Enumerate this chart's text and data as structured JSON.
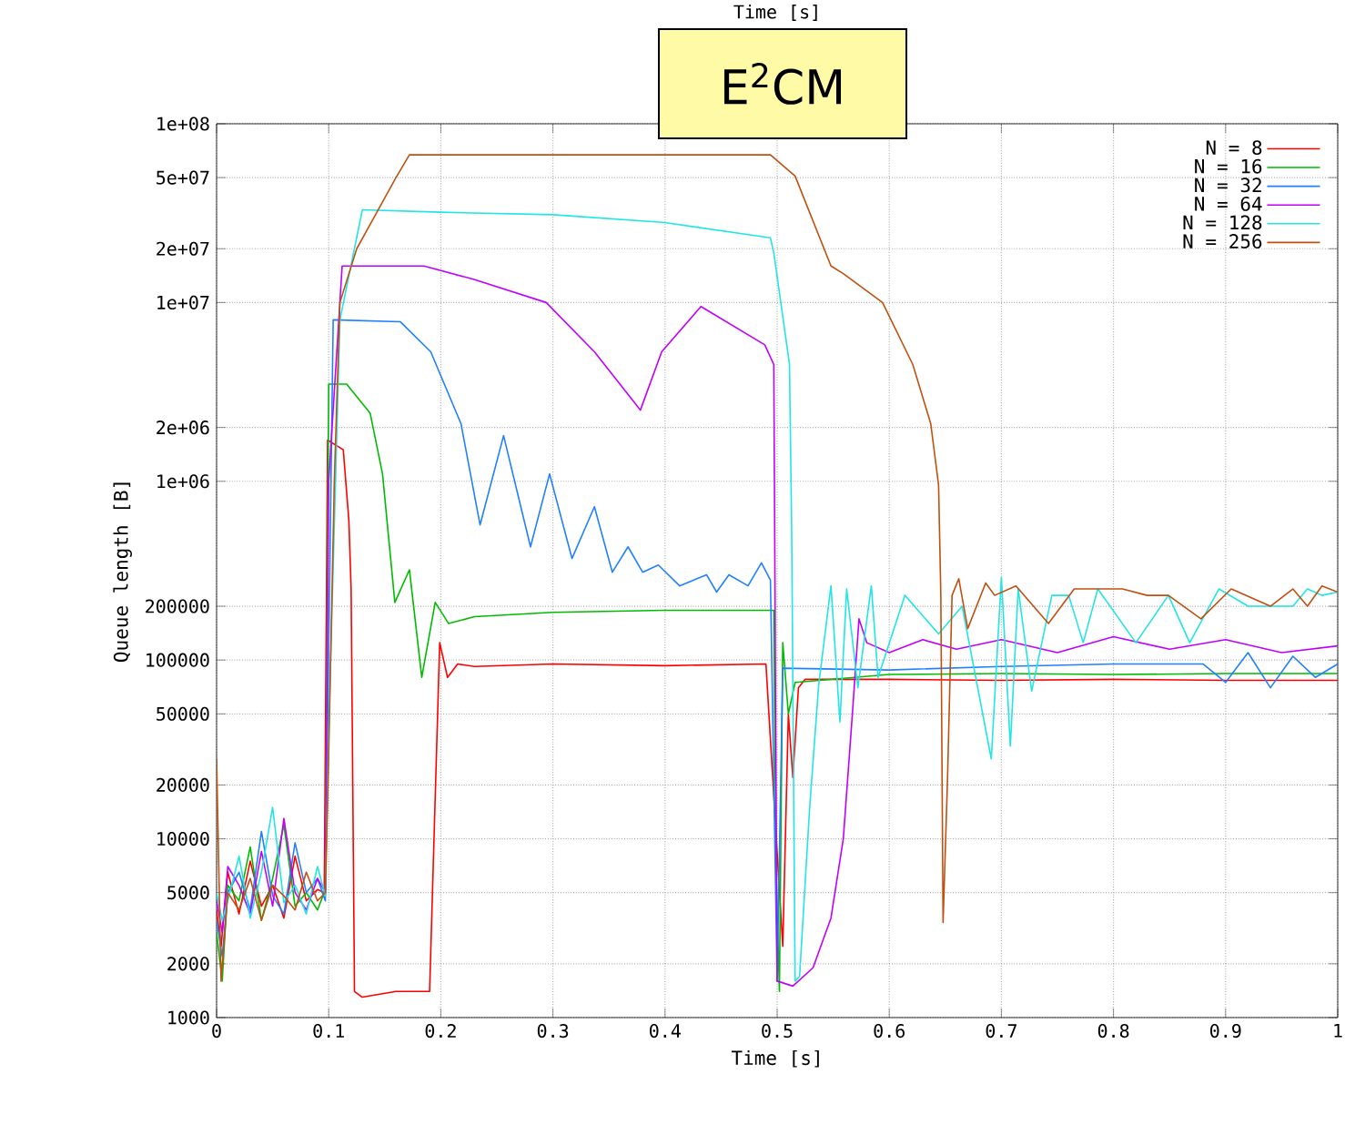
{
  "chart_data": {
    "type": "line",
    "title": "E$^{2}$CM",
    "xlabel": "Time [s]",
    "x2label": "Time [s]",
    "ylabel": "Queue length [B]",
    "log": "y",
    "grid": true,
    "legend": "top right",
    "marker": "none",
    "line_style": "solid",
    "xlim": [
      0,
      1
    ],
    "ylim": [
      1000,
      100000000
    ],
    "xticks": [
      0,
      0.1,
      0.2,
      0.3,
      0.4,
      0.5,
      0.6,
      0.7,
      0.8,
      0.9,
      1
    ],
    "yticks": [
      1000,
      2000,
      5000,
      10000,
      20000,
      50000,
      100000,
      200000,
      {
        "value": 1000000,
        "label": "1e+06"
      },
      {
        "value": 2000000,
        "label": "2e+06"
      },
      {
        "value": 10000000,
        "label": "1e+07"
      },
      {
        "value": 20000000,
        "label": "2e+07"
      },
      {
        "value": 50000000,
        "label": "5e+07"
      },
      {
        "value": 100000000,
        "label": "1e+08"
      }
    ],
    "series": [
      {
        "name": "N = 8",
        "color": "#ff0000",
        "x": [
          0,
          0.004,
          0.01,
          0.02,
          0.03,
          0.04,
          0.05,
          0.06,
          0.07,
          0.08,
          0.09,
          0.096,
          0.099,
          0.113,
          0.118,
          0.12,
          0.123,
          0.13,
          0.16,
          0.19,
          0.195,
          0.199,
          0.206,
          0.215,
          0.23,
          0.3,
          0.4,
          0.49,
          0.5,
          0.505,
          0.51,
          0.514,
          0.519,
          0.525,
          0.6,
          0.7,
          0.8,
          0.9,
          1.0
        ],
        "values": [
          4000,
          2500,
          6500,
          3800,
          7500,
          4200,
          5500,
          3600,
          8000,
          4500,
          5200,
          5000,
          1700000,
          1500000,
          600000,
          250000,
          1400,
          1300,
          1400,
          1400,
          17000,
          125000,
          80000,
          95000,
          92000,
          95000,
          93000,
          95000,
          null,
          2500,
          50000,
          22000,
          70000,
          78000,
          78000,
          77000,
          78000,
          77000,
          77000
        ]
      },
      {
        "name": "N = 16",
        "color": "#00bb00",
        "x": [
          0,
          0.005,
          0.01,
          0.02,
          0.03,
          0.04,
          0.05,
          0.06,
          0.07,
          0.08,
          0.09,
          0.097,
          0.1,
          0.116,
          0.137,
          0.148,
          0.159,
          0.172,
          0.183,
          0.195,
          0.207,
          0.23,
          0.3,
          0.4,
          0.497,
          0.499,
          0.502,
          0.505,
          0.51,
          0.516,
          0.6,
          0.7,
          0.8,
          0.9,
          1.0
        ],
        "values": [
          3000,
          1600,
          5500,
          4500,
          9000,
          3500,
          6000,
          12000,
          4200,
          5000,
          4000,
          5200,
          3500000,
          3500000,
          2400000,
          1100000,
          210000,
          320000,
          80000,
          210000,
          160000,
          175000,
          185000,
          190000,
          190000,
          7000,
          1400,
          125000,
          50000,
          75000,
          83000,
          84000,
          83000,
          84000,
          84000
        ]
      },
      {
        "name": "N = 32",
        "color": "#2080ff",
        "x": [
          0,
          0.005,
          0.01,
          0.02,
          0.03,
          0.04,
          0.05,
          0.06,
          0.07,
          0.08,
          0.09,
          0.097,
          0.104,
          0.164,
          0.191,
          0.218,
          0.235,
          0.256,
          0.28,
          0.297,
          0.317,
          0.337,
          0.353,
          0.367,
          0.38,
          0.394,
          0.413,
          0.437,
          0.446,
          0.457,
          0.474,
          0.486,
          0.494,
          0.5,
          0.505,
          0.6,
          0.7,
          0.8,
          0.88,
          0.9,
          0.92,
          0.94,
          0.96,
          0.98,
          1.0
        ],
        "values": [
          3500,
          2200,
          5000,
          6500,
          4000,
          11000,
          4800,
          3800,
          9500,
          5000,
          6000,
          4500,
          8000000,
          7800000,
          5300000,
          2100000,
          570000,
          1800000,
          430000,
          1100000,
          370000,
          720000,
          310000,
          430000,
          310000,
          340000,
          260000,
          300000,
          240000,
          300000,
          260000,
          350000,
          280000,
          1600,
          90000,
          88000,
          92000,
          95000,
          95000,
          75000,
          110000,
          70000,
          105000,
          80000,
          95000
        ]
      },
      {
        "name": "N = 64",
        "color": "#c000ff",
        "x": [
          0,
          0.005,
          0.01,
          0.02,
          0.03,
          0.04,
          0.05,
          0.06,
          0.07,
          0.08,
          0.09,
          0.097,
          0.1,
          0.112,
          0.185,
          0.229,
          0.294,
          0.337,
          0.378,
          0.397,
          0.432,
          0.489,
          0.497,
          0.5,
          0.514,
          0.532,
          0.548,
          0.559,
          0.567,
          0.573,
          0.58,
          0.6,
          0.63,
          0.66,
          0.7,
          0.75,
          0.8,
          0.85,
          0.9,
          0.95,
          1.0
        ],
        "values": [
          4500,
          3000,
          7000,
          5500,
          3800,
          8500,
          4200,
          13000,
          5000,
          4000,
          6000,
          5000,
          1000000,
          16000000,
          16000000,
          13500000,
          10000000,
          5300000,
          2500000,
          5300000,
          9500000,
          5800000,
          4500000,
          1600,
          1500,
          1900,
          3600,
          10000,
          49000,
          170000,
          125000,
          110000,
          130000,
          115000,
          130000,
          110000,
          135000,
          115000,
          130000,
          110000,
          120000
        ]
      },
      {
        "name": "N = 128",
        "color": "#22e5e5",
        "x": [
          0,
          0.005,
          0.01,
          0.02,
          0.03,
          0.04,
          0.05,
          0.06,
          0.07,
          0.08,
          0.09,
          0.097,
          0.1,
          0.11,
          0.13,
          0.2,
          0.3,
          0.4,
          0.494,
          0.497,
          0.511,
          0.513,
          0.516,
          0.52,
          0.529,
          0.537,
          0.548,
          0.556,
          0.562,
          0.572,
          0.584,
          0.59,
          0.614,
          0.644,
          0.665,
          0.691,
          0.7,
          0.708,
          0.715,
          0.727,
          0.745,
          0.76,
          0.773,
          0.786,
          0.82,
          0.849,
          0.868,
          0.894,
          0.92,
          0.96,
          0.973,
          0.986,
          1.0
        ],
        "values": [
          5000,
          3500,
          4500,
          8000,
          3600,
          6500,
          15000,
          4400,
          5500,
          3800,
          7000,
          4800,
          40000,
          8000000,
          33000000,
          32000000,
          31000000,
          28000000,
          23000000,
          19000000,
          4500000,
          500000,
          1600,
          1700,
          15000,
          72000,
          260000,
          45000,
          250000,
          70000,
          260000,
          80000,
          230000,
          140000,
          200000,
          28000,
          290000,
          33000,
          250000,
          67000,
          230000,
          230000,
          125000,
          250000,
          125000,
          230000,
          125000,
          250000,
          200000,
          200000,
          250000,
          230000,
          240000
        ]
      },
      {
        "name": "N = 256",
        "color": "#c05010",
        "x": [
          0,
          0.004,
          0.01,
          0.02,
          0.03,
          0.04,
          0.05,
          0.06,
          0.07,
          0.08,
          0.09,
          0.097,
          0.1,
          0.105,
          0.11,
          0.125,
          0.16,
          0.172,
          0.3,
          0.494,
          0.516,
          0.548,
          0.559,
          0.594,
          0.621,
          0.637,
          0.644,
          0.646,
          0.648,
          0.652,
          0.656,
          0.662,
          0.67,
          0.686,
          0.694,
          0.713,
          0.742,
          0.765,
          0.786,
          0.808,
          0.83,
          0.849,
          0.878,
          0.905,
          0.94,
          0.96,
          0.973,
          0.986,
          1.0
        ],
        "values": [
          28000,
          1600,
          5000,
          4000,
          6000,
          3500,
          5500,
          4800,
          4000,
          6500,
          4500,
          5000,
          30000,
          1000000,
          10000000,
          20000000,
          50000000,
          67000000,
          67000000,
          67000000,
          51000000,
          16000000,
          14500000,
          10000000,
          4500000,
          2100000,
          950000,
          230000,
          3400,
          22000,
          230000,
          285000,
          150000,
          270000,
          230000,
          260000,
          160000,
          250000,
          250000,
          250000,
          230000,
          230000,
          170000,
          250000,
          200000,
          250000,
          200000,
          260000,
          240000
        ]
      }
    ]
  }
}
